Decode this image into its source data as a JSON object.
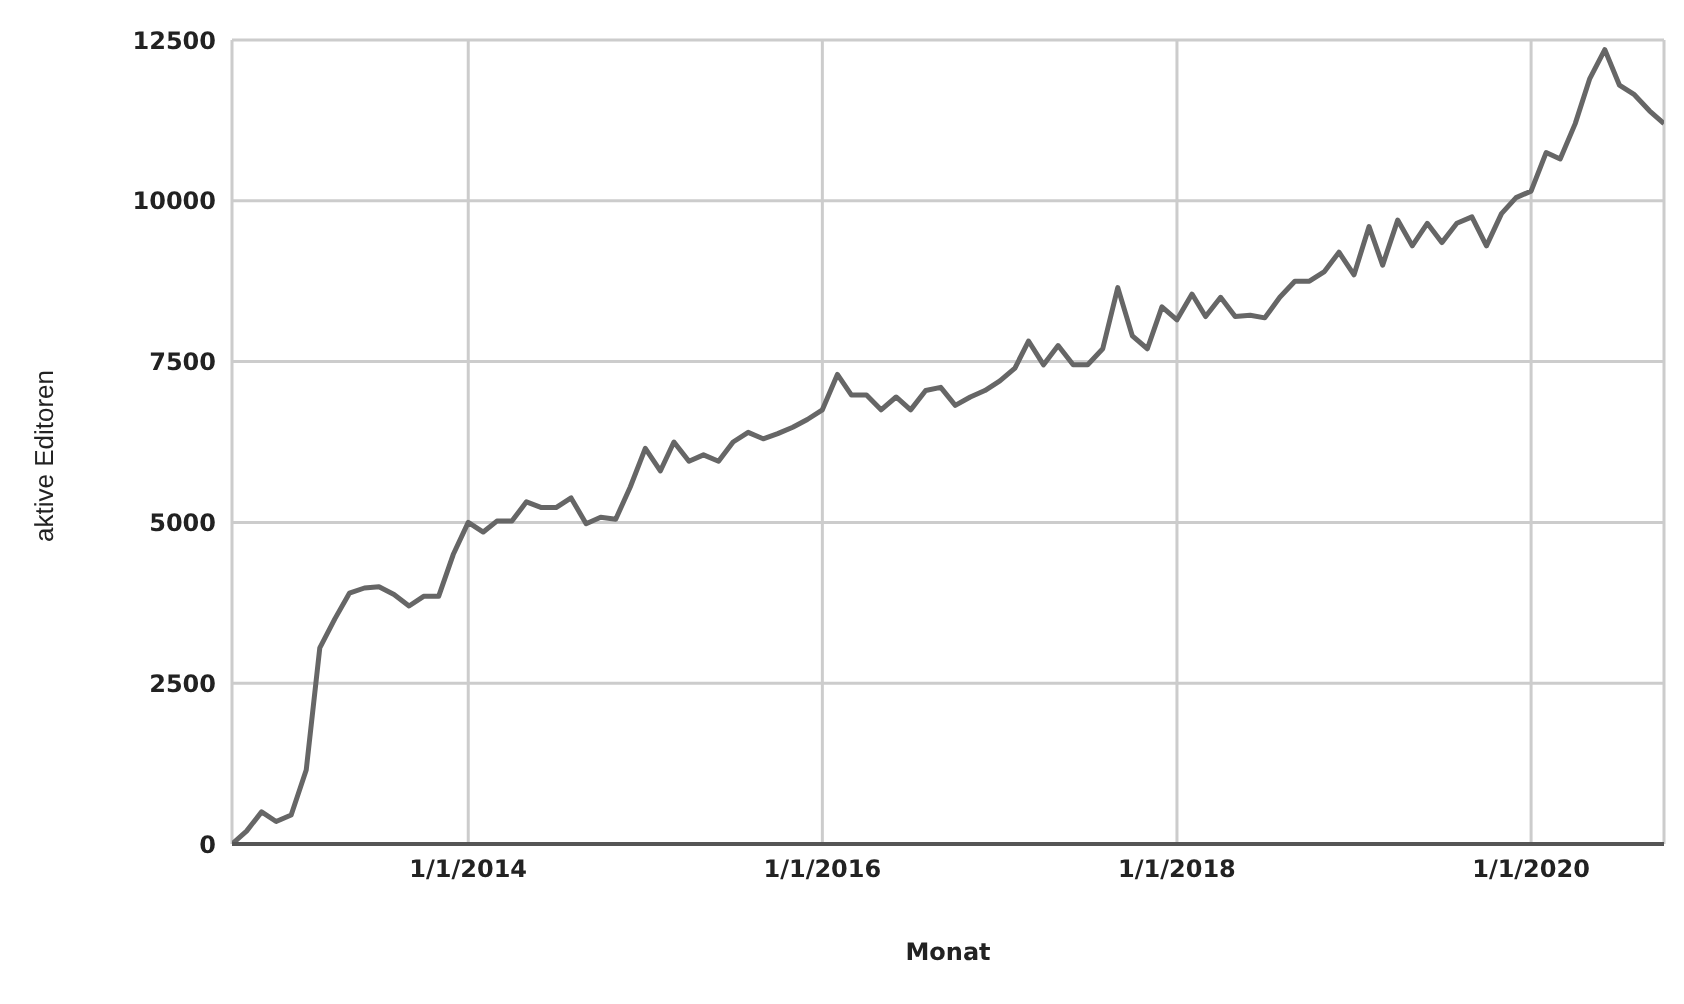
{
  "chart_data": {
    "type": "line",
    "xlabel": "Monat",
    "ylabel": "aktive Editoren",
    "x": [
      "2012-09",
      "2012-10",
      "2012-11",
      "2012-12",
      "2013-01",
      "2013-02",
      "2013-03",
      "2013-04",
      "2013-05",
      "2013-06",
      "2013-07",
      "2013-08",
      "2013-09",
      "2013-10",
      "2013-11",
      "2013-12",
      "2014-01",
      "2014-02",
      "2014-03",
      "2014-04",
      "2014-05",
      "2014-06",
      "2014-07",
      "2014-08",
      "2014-09",
      "2014-10",
      "2014-11",
      "2014-12",
      "2015-01",
      "2015-02",
      "2015-03",
      "2015-04",
      "2015-05",
      "2015-06",
      "2015-07",
      "2015-08",
      "2015-09",
      "2015-10",
      "2015-11",
      "2015-12",
      "2016-01",
      "2016-02",
      "2016-03",
      "2016-04",
      "2016-05",
      "2016-06",
      "2016-07",
      "2016-08",
      "2016-09",
      "2016-10",
      "2016-11",
      "2016-12",
      "2017-01",
      "2017-02",
      "2017-03",
      "2017-04",
      "2017-05",
      "2017-06",
      "2017-07",
      "2017-08",
      "2017-09",
      "2017-10",
      "2017-11",
      "2017-12",
      "2018-01",
      "2018-02",
      "2018-03",
      "2018-04",
      "2018-05",
      "2018-06",
      "2018-07",
      "2018-08",
      "2018-09",
      "2018-10",
      "2018-11",
      "2018-12",
      "2019-01",
      "2019-02",
      "2019-03",
      "2019-04",
      "2019-05",
      "2019-06",
      "2019-07",
      "2019-08",
      "2019-09",
      "2019-10",
      "2019-11",
      "2019-12",
      "2020-01",
      "2020-02",
      "2020-03",
      "2020-04",
      "2020-05",
      "2020-06",
      "2020-07",
      "2020-08",
      "2020-09",
      "2020-10"
    ],
    "series": [
      {
        "color": "#666666",
        "values": [
          0,
          200,
          500,
          350,
          450,
          1150,
          3050,
          3500,
          3900,
          3980,
          4000,
          3880,
          3700,
          3850,
          3850,
          4500,
          5000,
          4850,
          5020,
          5020,
          5320,
          5230,
          5230,
          5380,
          4980,
          5080,
          5050,
          5550,
          6150,
          5800,
          6250,
          5950,
          6050,
          5950,
          6250,
          6400,
          6300,
          6380,
          6480,
          6600,
          6750,
          7300,
          6980,
          6980,
          6750,
          6950,
          6750,
          7050,
          7100,
          6820,
          6950,
          7050,
          7200,
          7400,
          7820,
          7450,
          7750,
          7450,
          7450,
          7700,
          8650,
          7900,
          7700,
          8350,
          8150,
          8550,
          8200,
          8500,
          8200,
          8220,
          8180,
          8500,
          8750,
          8750,
          8900,
          9200,
          8850,
          9600,
          9000,
          9700,
          9300,
          9650,
          9350,
          9650,
          9750,
          9300,
          9800,
          10050,
          10150,
          10750,
          10650,
          11200,
          11900,
          12350,
          11800,
          11650,
          11400,
          11200
        ]
      }
    ],
    "xlim": [
      "2012-09",
      "2020-10"
    ],
    "xticks": [
      {
        "value": "2014-01-01",
        "label": "1/1/2014"
      },
      {
        "value": "2016-01-01",
        "label": "1/1/2016"
      },
      {
        "value": "2018-01-01",
        "label": "1/1/2018"
      },
      {
        "value": "2020-01-01",
        "label": "1/1/2020"
      }
    ],
    "ylim": [
      0,
      12500
    ],
    "yticks": [
      0,
      2500,
      5000,
      7500,
      10000,
      12500
    ],
    "grid": true,
    "legend": false,
    "marker": "none",
    "line_style": "solid"
  }
}
